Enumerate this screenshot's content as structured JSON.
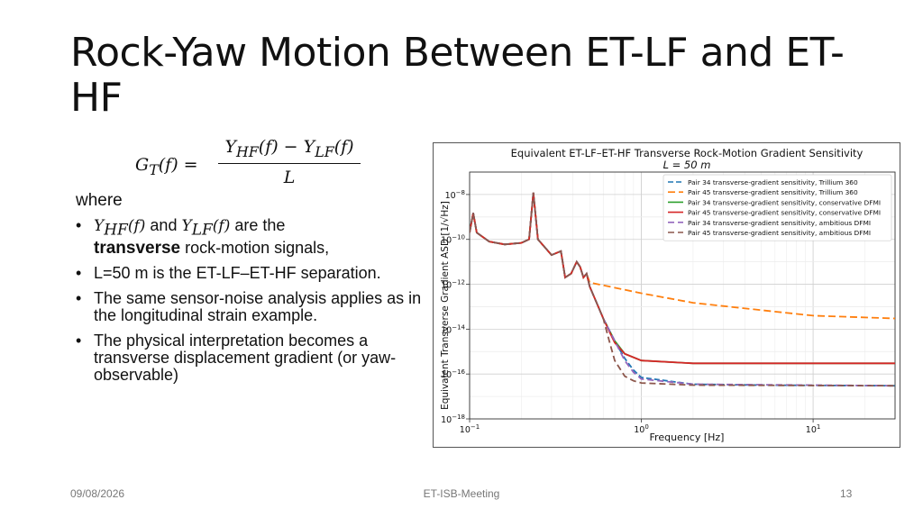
{
  "slide": {
    "title": "Rock-Yaw Motion Between ET-LF and ET-HF",
    "formula": {
      "lhs": "G",
      "lhs_sub": "T",
      "lhs_arg": "(f) =",
      "num_a": "Y",
      "num_a_sub": "HF",
      "num_mid": "(f) − Y",
      "num_b_sub": "LF",
      "num_end": "(f)",
      "den": "L"
    },
    "where": "where",
    "bullets": {
      "b1": {
        "y1": "Y",
        "y1_sub": "HF",
        "y1_arg": "(f)",
        "and": " and ",
        "y2": "Y",
        "y2_sub": "LF",
        "y2_arg": "(f)",
        "rest": " are the",
        "bold": "transverse",
        "tail": " rock-motion signals,"
      },
      "b2": "L=50 m is the ET-LF–ET-HF separation.",
      "b3": "The same sensor-noise analysis applies as in the longitudinal strain example.",
      "b4": "The physical interpretation becomes a transverse displacement gradient (or yaw-observable)"
    },
    "bullet_glyph": "•",
    "footer": {
      "date": "09/08/2026",
      "center": "ET-ISB-Meeting",
      "page": "13"
    }
  },
  "chart_data": {
    "type": "line",
    "title": "Equivalent ET-LF–ET-HF Transverse Rock-Motion Gradient Sensitivity",
    "subtitle": "L = 50 m",
    "xlabel": "Frequency [Hz]",
    "ylabel": "Equivalent Transverse Gradient ASD [1/√Hz]",
    "x_scale": "log",
    "y_scale": "log",
    "xlim": [
      0.1,
      30
    ],
    "ylim": [
      1e-18,
      1e-07
    ],
    "grid": true,
    "legend_position": "top-right",
    "x_ticks": [
      {
        "value": 0.1,
        "label": "10",
        "exp": "−1"
      },
      {
        "value": 1,
        "label": "10",
        "exp": "0"
      },
      {
        "value": 10,
        "label": "10",
        "exp": "1"
      }
    ],
    "y_ticks": [
      {
        "value": 1e-18,
        "label": "10",
        "exp": "−18"
      },
      {
        "value": 1e-16,
        "label": "10",
        "exp": "−16"
      },
      {
        "value": 1e-14,
        "label": "10",
        "exp": "−14"
      },
      {
        "value": 1e-12,
        "label": "10",
        "exp": "−12"
      },
      {
        "value": 1e-10,
        "label": "10",
        "exp": "−10"
      },
      {
        "value": 1e-08,
        "label": "10",
        "exp": "−8"
      }
    ],
    "series": [
      {
        "name": "Pair 34 transverse-gradient sensitivity, Trillium 360",
        "color": "#1f77b4",
        "dash": "6,3",
        "points": [
          [
            0.1,
            2e-10
          ],
          [
            0.105,
            1.5e-09
          ],
          [
            0.11,
            2e-10
          ],
          [
            0.13,
            8e-11
          ],
          [
            0.16,
            6e-11
          ],
          [
            0.2,
            7e-11
          ],
          [
            0.222,
            1e-10
          ],
          [
            0.235,
            1.2e-08
          ],
          [
            0.25,
            1e-10
          ],
          [
            0.3,
            2e-11
          ],
          [
            0.34,
            3e-11
          ],
          [
            0.36,
            2e-12
          ],
          [
            0.39,
            3e-12
          ],
          [
            0.42,
            1e-11
          ],
          [
            0.44,
            6e-12
          ],
          [
            0.46,
            2e-12
          ],
          [
            0.48,
            3e-12
          ],
          [
            0.5,
            8e-13
          ],
          [
            0.6,
            3e-14
          ],
          [
            0.7,
            3e-15
          ],
          [
            0.8,
            5e-16
          ],
          [
            0.9,
            1.5e-16
          ],
          [
            1.0,
            7e-17
          ],
          [
            2,
            3.5e-17
          ],
          [
            5,
            3.2e-17
          ],
          [
            30,
            3e-17
          ]
        ]
      },
      {
        "name": "Pair 45 transverse-gradient sensitivity, Trillium 360",
        "color": "#ff7f0e",
        "dash": "8,4",
        "points": [
          [
            0.1,
            2e-10
          ],
          [
            0.105,
            1.5e-09
          ],
          [
            0.11,
            2e-10
          ],
          [
            0.13,
            8e-11
          ],
          [
            0.16,
            6e-11
          ],
          [
            0.2,
            7e-11
          ],
          [
            0.222,
            1e-10
          ],
          [
            0.235,
            1.2e-08
          ],
          [
            0.25,
            1e-10
          ],
          [
            0.3,
            2e-11
          ],
          [
            0.34,
            3e-11
          ],
          [
            0.36,
            2e-12
          ],
          [
            0.39,
            3e-12
          ],
          [
            0.42,
            1e-11
          ],
          [
            0.44,
            6e-12
          ],
          [
            0.46,
            2e-12
          ],
          [
            0.48,
            3e-12
          ],
          [
            0.5,
            1.2e-12
          ],
          [
            1,
            4e-13
          ],
          [
            2,
            1.5e-13
          ],
          [
            5,
            7e-14
          ],
          [
            10,
            4e-14
          ],
          [
            30,
            3e-14
          ]
        ]
      },
      {
        "name": "Pair 34 transverse-gradient sensitivity, conservative DFMI",
        "color": "#2ca02c",
        "dash": "",
        "points": [
          [
            0.1,
            2e-10
          ],
          [
            0.105,
            1.5e-09
          ],
          [
            0.11,
            2e-10
          ],
          [
            0.13,
            8e-11
          ],
          [
            0.16,
            6e-11
          ],
          [
            0.2,
            7e-11
          ],
          [
            0.222,
            1e-10
          ],
          [
            0.235,
            1.2e-08
          ],
          [
            0.25,
            1e-10
          ],
          [
            0.3,
            2e-11
          ],
          [
            0.34,
            3e-11
          ],
          [
            0.36,
            2e-12
          ],
          [
            0.39,
            3e-12
          ],
          [
            0.42,
            1e-11
          ],
          [
            0.44,
            6e-12
          ],
          [
            0.46,
            2e-12
          ],
          [
            0.48,
            3e-12
          ],
          [
            0.5,
            8e-13
          ],
          [
            0.6,
            3e-14
          ],
          [
            0.7,
            3e-15
          ],
          [
            0.8,
            8e-16
          ],
          [
            1.0,
            4e-16
          ],
          [
            2,
            3e-16
          ],
          [
            30,
            3e-16
          ]
        ]
      },
      {
        "name": "Pair 45 transverse-gradient sensitivity, conservative DFMI",
        "color": "#d62728",
        "dash": "",
        "points": [
          [
            0.1,
            2e-10
          ],
          [
            0.105,
            1.5e-09
          ],
          [
            0.11,
            2e-10
          ],
          [
            0.13,
            8e-11
          ],
          [
            0.16,
            6e-11
          ],
          [
            0.2,
            7e-11
          ],
          [
            0.222,
            1e-10
          ],
          [
            0.235,
            1.2e-08
          ],
          [
            0.25,
            1e-10
          ],
          [
            0.3,
            2e-11
          ],
          [
            0.34,
            3e-11
          ],
          [
            0.36,
            2e-12
          ],
          [
            0.39,
            3e-12
          ],
          [
            0.42,
            1e-11
          ],
          [
            0.44,
            6e-12
          ],
          [
            0.46,
            2e-12
          ],
          [
            0.48,
            3e-12
          ],
          [
            0.5,
            8e-13
          ],
          [
            0.6,
            3e-14
          ],
          [
            0.65,
            8e-15
          ],
          [
            0.7,
            2.5e-15
          ],
          [
            0.8,
            8e-16
          ],
          [
            1.0,
            4e-16
          ],
          [
            2,
            3e-16
          ],
          [
            30,
            3e-16
          ]
        ]
      },
      {
        "name": "Pair 34 transverse-gradient sensitivity, ambitious DFMI",
        "color": "#9467bd",
        "dash": "7,4",
        "points": [
          [
            0.1,
            2e-10
          ],
          [
            0.105,
            1.5e-09
          ],
          [
            0.11,
            2e-10
          ],
          [
            0.13,
            8e-11
          ],
          [
            0.16,
            6e-11
          ],
          [
            0.2,
            7e-11
          ],
          [
            0.222,
            1e-10
          ],
          [
            0.235,
            1.2e-08
          ],
          [
            0.25,
            1e-10
          ],
          [
            0.3,
            2e-11
          ],
          [
            0.34,
            3e-11
          ],
          [
            0.36,
            2e-12
          ],
          [
            0.39,
            3e-12
          ],
          [
            0.42,
            1e-11
          ],
          [
            0.44,
            6e-12
          ],
          [
            0.46,
            2e-12
          ],
          [
            0.48,
            3e-12
          ],
          [
            0.5,
            8e-13
          ],
          [
            0.6,
            3e-14
          ],
          [
            0.7,
            3e-15
          ],
          [
            0.8,
            4e-16
          ],
          [
            0.9,
            1.2e-16
          ],
          [
            1.0,
            6e-17
          ],
          [
            2,
            3.5e-17
          ],
          [
            30,
            3e-17
          ]
        ]
      },
      {
        "name": "Pair 45 transverse-gradient sensitivity, ambitious DFMI",
        "color": "#8c564b",
        "dash": "7,4",
        "points": [
          [
            0.1,
            2e-10
          ],
          [
            0.105,
            1.5e-09
          ],
          [
            0.11,
            2e-10
          ],
          [
            0.13,
            8e-11
          ],
          [
            0.16,
            6e-11
          ],
          [
            0.2,
            7e-11
          ],
          [
            0.222,
            1e-10
          ],
          [
            0.235,
            1.2e-08
          ],
          [
            0.25,
            1e-10
          ],
          [
            0.3,
            2e-11
          ],
          [
            0.34,
            3e-11
          ],
          [
            0.36,
            2e-12
          ],
          [
            0.39,
            3e-12
          ],
          [
            0.42,
            1e-11
          ],
          [
            0.44,
            6e-12
          ],
          [
            0.46,
            2e-12
          ],
          [
            0.48,
            3e-12
          ],
          [
            0.5,
            8e-13
          ],
          [
            0.6,
            3e-14
          ],
          [
            0.65,
            3e-15
          ],
          [
            0.7,
            4e-16
          ],
          [
            0.8,
            8e-17
          ],
          [
            0.9,
            5e-17
          ],
          [
            1.0,
            4e-17
          ],
          [
            2,
            3.2e-17
          ],
          [
            30,
            3e-17
          ]
        ]
      }
    ]
  }
}
